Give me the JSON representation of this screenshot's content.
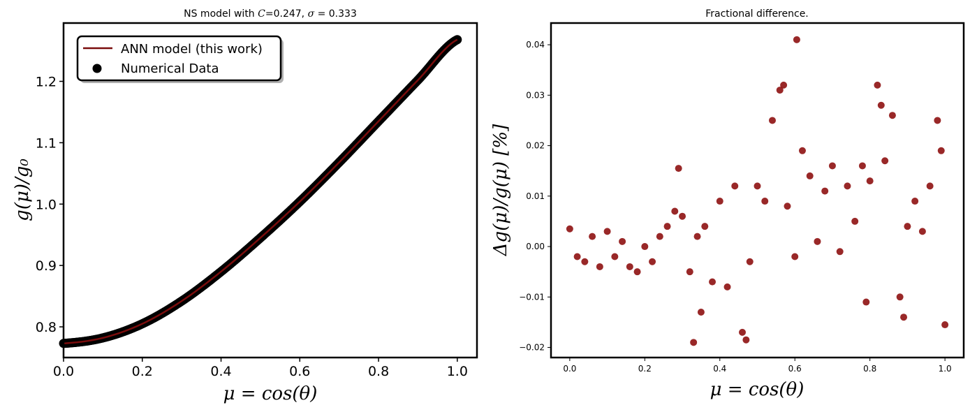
{
  "colors": {
    "line": "#7a0c0c",
    "markers": "#8b0a0a",
    "frame": "#000000"
  },
  "chart_data": [
    {
      "type": "line",
      "title": "NS model with C=0.247, σ = 0.333",
      "title_parts": {
        "prefix": "NS model with ",
        "c_symbol": "C",
        "c_value": "=0.247, ",
        "sigma_symbol": "σ",
        "sigma_value": " = 0.333"
      },
      "xlabel": "μ = cos(θ)",
      "ylabel": "g(μ)/g₀",
      "xlim": [
        0.0,
        1.05
      ],
      "ylim": [
        0.75,
        1.295
      ],
      "xticks": [
        "0.0",
        "0.2",
        "0.4",
        "0.6",
        "0.8",
        "1.0"
      ],
      "yticks": [
        "0.8",
        "0.9",
        "1.0",
        "1.1",
        "1.2"
      ],
      "grid": false,
      "legend_position": "top-left",
      "series": [
        {
          "name": "ANN model (this work)",
          "kind": "line",
          "x": [
            0.0,
            0.1,
            0.2,
            0.3,
            0.4,
            0.5,
            0.6,
            0.7,
            0.8,
            0.9,
            1.0
          ],
          "y": [
            0.773,
            0.782,
            0.805,
            0.842,
            0.89,
            0.945,
            1.004,
            1.068,
            1.135,
            1.202,
            1.268
          ]
        },
        {
          "name": "Numerical Data",
          "kind": "scatter",
          "x": [
            0.0,
            0.1,
            0.2,
            0.3,
            0.4,
            0.5,
            0.6,
            0.7,
            0.8,
            0.9,
            1.0
          ],
          "y": [
            0.773,
            0.782,
            0.805,
            0.842,
            0.89,
            0.945,
            1.004,
            1.068,
            1.135,
            1.202,
            1.268
          ]
        }
      ]
    },
    {
      "type": "scatter",
      "title": "Fractional difference.",
      "xlabel": "μ = cos(θ)",
      "ylabel": "Δg(μ)/g(μ) [%]",
      "xlim": [
        -0.05,
        1.05
      ],
      "ylim": [
        -0.022,
        0.0443
      ],
      "xticks": [
        "0.0",
        "0.2",
        "0.4",
        "0.6",
        "0.8",
        "1.0"
      ],
      "yticks": [
        "−0.02",
        "−0.01",
        "0.00",
        "0.01",
        "0.02",
        "0.03",
        "0.04"
      ],
      "grid": false,
      "series": [
        {
          "name": "",
          "kind": "scatter",
          "x": [
            0.0,
            0.02,
            0.04,
            0.06,
            0.08,
            0.1,
            0.12,
            0.14,
            0.16,
            0.18,
            0.2,
            0.22,
            0.24,
            0.26,
            0.28,
            0.29,
            0.3,
            0.32,
            0.33,
            0.34,
            0.35,
            0.36,
            0.38,
            0.4,
            0.42,
            0.44,
            0.46,
            0.47,
            0.48,
            0.5,
            0.52,
            0.54,
            0.56,
            0.57,
            0.58,
            0.6,
            0.605,
            0.62,
            0.64,
            0.66,
            0.68,
            0.7,
            0.72,
            0.74,
            0.76,
            0.78,
            0.79,
            0.8,
            0.82,
            0.83,
            0.84,
            0.86,
            0.88,
            0.89,
            0.9,
            0.92,
            0.94,
            0.96,
            0.98,
            0.99,
            1.0
          ],
          "y": [
            0.0035,
            -0.002,
            -0.003,
            0.002,
            -0.004,
            0.003,
            -0.002,
            0.001,
            -0.004,
            -0.005,
            0.0,
            -0.003,
            0.002,
            0.004,
            0.007,
            0.0155,
            0.006,
            -0.005,
            -0.019,
            0.002,
            -0.013,
            0.004,
            -0.007,
            0.009,
            -0.008,
            0.012,
            -0.017,
            -0.0185,
            -0.003,
            0.012,
            0.009,
            0.025,
            0.031,
            0.032,
            0.008,
            -0.002,
            0.041,
            0.019,
            0.014,
            0.001,
            0.011,
            0.016,
            -0.001,
            0.012,
            0.005,
            0.016,
            -0.011,
            0.013,
            0.032,
            0.028,
            0.017,
            0.026,
            -0.01,
            -0.014,
            0.004,
            0.009,
            0.003,
            0.012,
            0.025,
            0.019,
            -0.0155
          ]
        }
      ]
    }
  ]
}
